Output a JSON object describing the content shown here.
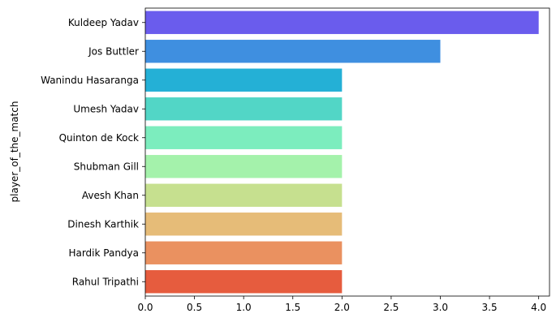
{
  "chart_data": {
    "type": "bar",
    "orientation": "horizontal",
    "title": "",
    "xlabel": "",
    "ylabel": "player_of_the_match",
    "categories": [
      "Kuldeep Yadav",
      "Jos Buttler",
      "Wanindu Hasaranga",
      "Umesh Yadav",
      "Quinton de Kock",
      "Shubman Gill",
      "Avesh Khan",
      "Dinesh Karthik",
      "Hardik Pandya",
      "Rahul Tripathi"
    ],
    "values": [
      4,
      3,
      2,
      2,
      2,
      2,
      2,
      2,
      2,
      2
    ],
    "colors": [
      "#6a5ced",
      "#3f8fe0",
      "#24b0d6",
      "#52d6c6",
      "#7cedbe",
      "#a4f2ab",
      "#c6e08f",
      "#e6bc78",
      "#ea9160",
      "#e65c3e"
    ],
    "xlim": [
      0,
      4.11
    ],
    "xticks": [
      "0.0",
      "0.5",
      "1.0",
      "1.5",
      "2.0",
      "2.5",
      "3.0",
      "3.5",
      "4.0"
    ],
    "grid": false,
    "legend": "none"
  }
}
